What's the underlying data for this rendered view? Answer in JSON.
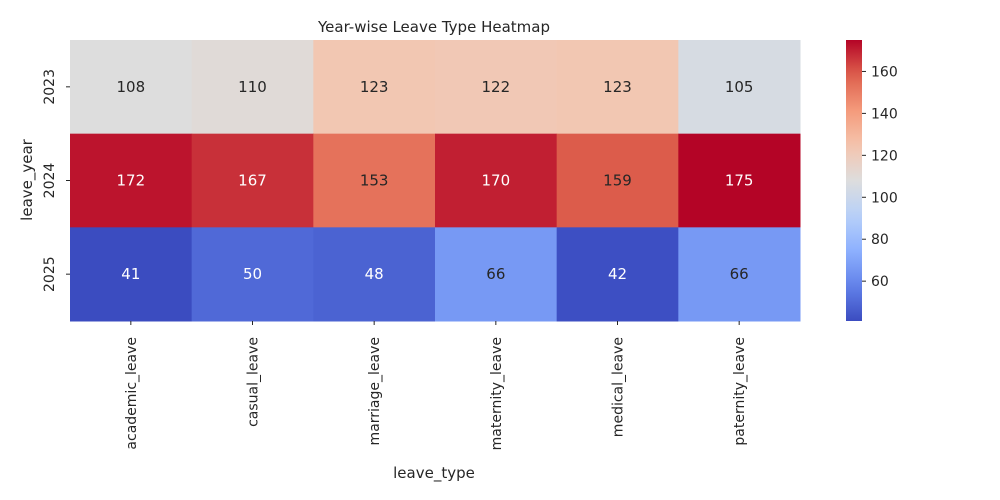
{
  "chart_data": {
    "type": "heatmap",
    "title": "Year-wise Leave Type Heatmap",
    "xlabel": "leave_type",
    "ylabel": "leave_year",
    "x_categories": [
      "academic_leave",
      "casual_leave",
      "marriage_leave",
      "maternity_leave",
      "medical_leave",
      "paternity_leave"
    ],
    "y_categories": [
      "2023",
      "2024",
      "2025"
    ],
    "values": [
      [
        108,
        110,
        123,
        122,
        123,
        105
      ],
      [
        172,
        167,
        153,
        170,
        159,
        175
      ],
      [
        41,
        50,
        48,
        66,
        42,
        66
      ]
    ],
    "colormap": "coolwarm",
    "color_range": [
      41,
      175
    ],
    "colorbar_ticks": [
      60,
      80,
      100,
      120,
      140,
      160
    ],
    "annotations": true
  }
}
